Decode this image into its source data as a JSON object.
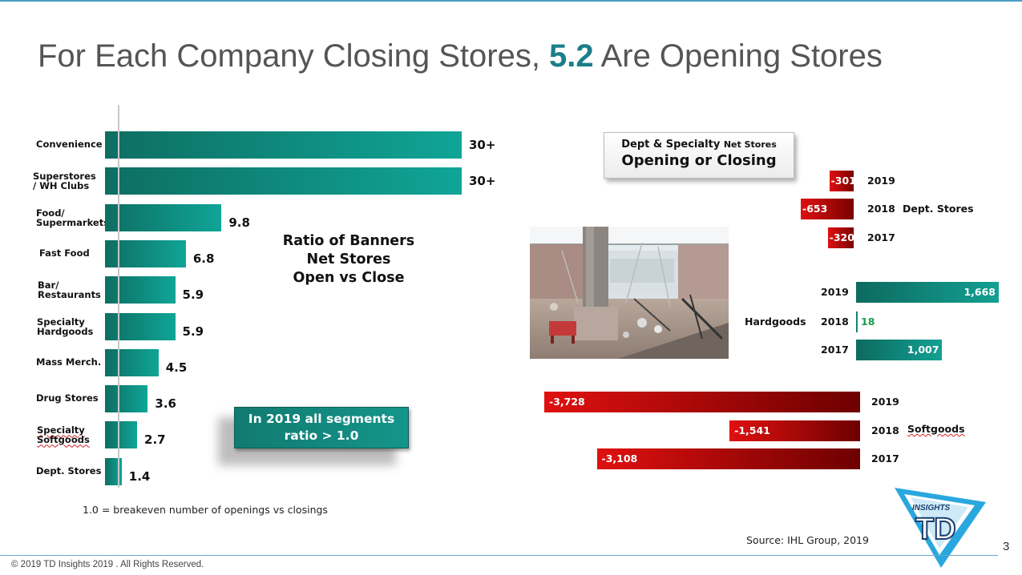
{
  "title": {
    "prefix": "For Each Company Closing Stores, ",
    "highlight": "5.2",
    "suffix": " Are Opening Stores"
  },
  "chart_data": [
    {
      "type": "bar",
      "orientation": "horizontal",
      "title": "Ratio of Banners\nNet Stores\nOpen vs Close",
      "categories": [
        "Convenience",
        "Superstores\n/ WH Clubs",
        "Food/\nSupermarkets",
        "Fast Food",
        "Bar/\nRestaurants",
        "Specialty\nHardgoods",
        "Mass Merch.",
        "Drug Stores",
        "Specialty\nSoftgoods",
        "Dept. Stores"
      ],
      "values": [
        30,
        30,
        9.8,
        6.8,
        5.9,
        5.9,
        4.5,
        3.6,
        2.7,
        1.4
      ],
      "value_labels": [
        "30+",
        "30+",
        "9.8",
        "6.8",
        "5.9",
        "5.9",
        "4.5",
        "3.6",
        "2.7",
        "1.4"
      ],
      "xlim": [
        0,
        30
      ],
      "color": "#0fa597"
    },
    {
      "type": "bar",
      "orientation": "horizontal",
      "title": "Dept & Specialty Net Stores Opening or Closing",
      "groups": [
        {
          "name": "Dept. Stores",
          "years": [
            "2019",
            "2018",
            "2017"
          ],
          "values": [
            -301,
            -653,
            -320
          ],
          "labels": [
            "-301",
            "-653",
            "-320"
          ]
        },
        {
          "name": "Hardgoods",
          "years": [
            "2019",
            "2018",
            "2017"
          ],
          "values": [
            1668,
            18,
            1007
          ],
          "labels": [
            "1,668",
            "18",
            "1,007"
          ]
        },
        {
          "name": "Softgoods",
          "years": [
            "2019",
            "2018",
            "2017"
          ],
          "values": [
            -3728,
            -1541,
            -3108
          ],
          "labels": [
            "-3,728",
            "-1,541",
            "-3,108"
          ]
        }
      ],
      "colors": {
        "negative": "#c00000",
        "positive": "#13a092",
        "small_positive_label": "#1a9a4a"
      }
    }
  ],
  "left_chart": {
    "ratio_label": "Ratio of Banners\nNet Stores\nOpen vs Close",
    "callout": "In 2019 all segments\nratio > 1.0",
    "footnote": "1.0 = breakeven number of openings vs closings"
  },
  "right_chart": {
    "box_line1_main": "Dept & Specialty ",
    "box_line1_small": "Net Stores",
    "box_line2": "Opening or Closing"
  },
  "photo": {
    "icon": "abandoned-mall-photo"
  },
  "source": "Source: IHL Group, 2019",
  "page_number": "3",
  "copyright": "© 2019 TD Insights 2019 . All Rights Reserved.",
  "logo": {
    "top_text": "INSIGHTS",
    "main_text": "TD",
    "icon": "td-insights-logo"
  }
}
